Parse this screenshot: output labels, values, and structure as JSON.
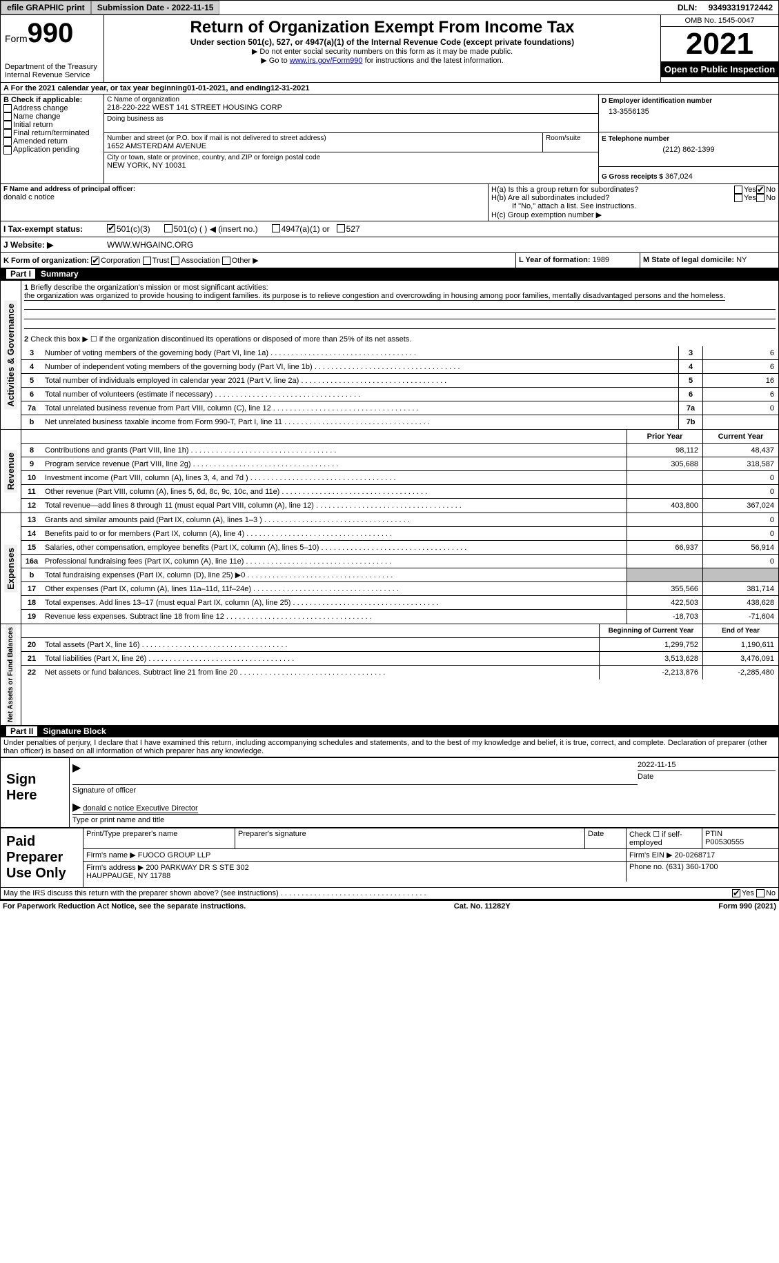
{
  "topbar": {
    "efile": "efile GRAPHIC print",
    "submission": "Submission Date - 2022-11-15",
    "dln_label": "DLN:",
    "dln": "93493319172442"
  },
  "header": {
    "form_word": "Form",
    "form_num": "990",
    "dept": "Department of the Treasury\nInternal Revenue Service",
    "title": "Return of Organization Exempt From Income Tax",
    "subtitle": "Under section 501(c), 527, or 4947(a)(1) of the Internal Revenue Code (except private foundations)",
    "note1": "▶ Do not enter social security numbers on this form as it may be made public.",
    "note2_pre": "▶ Go to ",
    "note2_link": "www.irs.gov/Form990",
    "note2_post": " for instructions and the latest information.",
    "omb": "OMB No. 1545-0047",
    "year": "2021",
    "open": "Open to Public Inspection"
  },
  "A": {
    "text": "A For the 2021 calendar year, or tax year beginning ",
    "begin": "01-01-2021",
    "mid": " , and ending ",
    "end": "12-31-2021"
  },
  "B": {
    "label": "B Check if applicable:",
    "items": [
      "Address change",
      "Name change",
      "Initial return",
      "Final return/terminated",
      "Amended return",
      "Application pending"
    ]
  },
  "C": {
    "name_label": "C Name of organization",
    "name": "218-220-222 WEST 141 STREET HOUSING CORP",
    "dba_label": "Doing business as",
    "addr_label": "Number and street (or P.O. box if mail is not delivered to street address)",
    "room_label": "Room/suite",
    "addr": "1652 AMSTERDAM AVENUE",
    "city_label": "City or town, state or province, country, and ZIP or foreign postal code",
    "city": "NEW YORK, NY  10031"
  },
  "D": {
    "label": "D Employer identification number",
    "val": "13-3556135"
  },
  "E": {
    "label": "E Telephone number",
    "val": "(212) 862-1399"
  },
  "G": {
    "label": "G Gross receipts $",
    "val": "367,024"
  },
  "F": {
    "label": "F Name and address of principal officer:",
    "val": "donald c notice"
  },
  "H": {
    "a": "H(a)  Is this a group return for subordinates?",
    "b": "H(b)  Are all subordinates included?",
    "b_note": "If \"No,\" attach a list. See instructions.",
    "c": "H(c)  Group exemption number ▶",
    "yes": "Yes",
    "no": "No"
  },
  "I": {
    "label": "I    Tax-exempt status:",
    "opts": [
      "501(c)(3)",
      "501(c) (  ) ◀ (insert no.)",
      "4947(a)(1) or",
      "527"
    ]
  },
  "J": {
    "label": "J   Website: ▶",
    "val": "WWW.WHGAINC.ORG"
  },
  "K": {
    "label": "K Form of organization:",
    "opts": [
      "Corporation",
      "Trust",
      "Association",
      "Other ▶"
    ]
  },
  "L": {
    "label": "L Year of formation:",
    "val": "1989"
  },
  "M": {
    "label": "M State of legal domicile:",
    "val": "NY"
  },
  "part1": {
    "num": "Part I",
    "title": "Summary"
  },
  "summary": {
    "l1": "Briefly describe the organization's mission or most significant activities:",
    "l1_text": "the organization was organized to provide housing to indigent families. its purpose is to relieve congestion and overcrowding in housing among poor families, mentally disadvantaged persons and the homeless.",
    "l2": "Check this box ▶ ☐  if the organization discontinued its operations or disposed of more than 25% of its net assets.",
    "lines": [
      {
        "n": "3",
        "t": "Number of voting members of the governing body (Part VI, line 1a)",
        "b": "3",
        "v": "6"
      },
      {
        "n": "4",
        "t": "Number of independent voting members of the governing body (Part VI, line 1b)",
        "b": "4",
        "v": "6"
      },
      {
        "n": "5",
        "t": "Total number of individuals employed in calendar year 2021 (Part V, line 2a)",
        "b": "5",
        "v": "16"
      },
      {
        "n": "6",
        "t": "Total number of volunteers (estimate if necessary)",
        "b": "6",
        "v": "6"
      },
      {
        "n": "7a",
        "t": "Total unrelated business revenue from Part VIII, column (C), line 12",
        "b": "7a",
        "v": "0"
      },
      {
        "n": "b",
        "t": "Net unrelated business taxable income from Form 990-T, Part I, line 11",
        "b": "7b",
        "v": ""
      }
    ],
    "col_prior": "Prior Year",
    "col_curr": "Current Year"
  },
  "revenue": {
    "label": "Revenue",
    "lines": [
      {
        "n": "8",
        "t": "Contributions and grants (Part VIII, line 1h)",
        "p": "98,112",
        "c": "48,437"
      },
      {
        "n": "9",
        "t": "Program service revenue (Part VIII, line 2g)",
        "p": "305,688",
        "c": "318,587"
      },
      {
        "n": "10",
        "t": "Investment income (Part VIII, column (A), lines 3, 4, and 7d )",
        "p": "",
        "c": "0"
      },
      {
        "n": "11",
        "t": "Other revenue (Part VIII, column (A), lines 5, 6d, 8c, 9c, 10c, and 11e)",
        "p": "",
        "c": "0"
      },
      {
        "n": "12",
        "t": "Total revenue—add lines 8 through 11 (must equal Part VIII, column (A), line 12)",
        "p": "403,800",
        "c": "367,024"
      }
    ]
  },
  "expenses": {
    "label": "Expenses",
    "lines": [
      {
        "n": "13",
        "t": "Grants and similar amounts paid (Part IX, column (A), lines 1–3 )",
        "p": "",
        "c": "0"
      },
      {
        "n": "14",
        "t": "Benefits paid to or for members (Part IX, column (A), line 4)",
        "p": "",
        "c": "0"
      },
      {
        "n": "15",
        "t": "Salaries, other compensation, employee benefits (Part IX, column (A), lines 5–10)",
        "p": "66,937",
        "c": "56,914"
      },
      {
        "n": "16a",
        "t": "Professional fundraising fees (Part IX, column (A), line 11e)",
        "p": "",
        "c": "0"
      },
      {
        "n": "b",
        "t": "Total fundraising expenses (Part IX, column (D), line 25) ▶0",
        "p": "shade",
        "c": "shade"
      },
      {
        "n": "17",
        "t": "Other expenses (Part IX, column (A), lines 11a–11d, 11f–24e)",
        "p": "355,566",
        "c": "381,714"
      },
      {
        "n": "18",
        "t": "Total expenses. Add lines 13–17 (must equal Part IX, column (A), line 25)",
        "p": "422,503",
        "c": "438,628"
      },
      {
        "n": "19",
        "t": "Revenue less expenses. Subtract line 18 from line 12",
        "p": "-18,703",
        "c": "-71,604"
      }
    ]
  },
  "netassets": {
    "label": "Net Assets or Fund Balances",
    "col_begin": "Beginning of Current Year",
    "col_end": "End of Year",
    "lines": [
      {
        "n": "20",
        "t": "Total assets (Part X, line 16)",
        "p": "1,299,752",
        "c": "1,190,611"
      },
      {
        "n": "21",
        "t": "Total liabilities (Part X, line 26)",
        "p": "3,513,628",
        "c": "3,476,091"
      },
      {
        "n": "22",
        "t": "Net assets or fund balances. Subtract line 21 from line 20",
        "p": "-2,213,876",
        "c": "-2,285,480"
      }
    ]
  },
  "part2": {
    "num": "Part II",
    "title": "Signature Block"
  },
  "penalties": "Under penalties of perjury, I declare that I have examined this return, including accompanying schedules and statements, and to the best of my knowledge and belief, it is true, correct, and complete. Declaration of preparer (other than officer) is based on all information of which preparer has any knowledge.",
  "sign": {
    "here": "Sign Here",
    "sig_label": "Signature of officer",
    "date_label": "Date",
    "date": "2022-11-15",
    "name": "donald c notice  Executive Director",
    "name_label": "Type or print name and title"
  },
  "prep": {
    "title": "Paid Preparer Use Only",
    "h1": "Print/Type preparer's name",
    "h2": "Preparer's signature",
    "h3": "Date",
    "h4_pre": "Check ☐ if self-employed",
    "h5": "PTIN",
    "ptin": "P00530555",
    "firm_label": "Firm's name    ▶",
    "firm": "FUOCO GROUP LLP",
    "ein_label": "Firm's EIN ▶",
    "ein": "20-0268717",
    "addr_label": "Firm's address ▶",
    "addr": "200 PARKWAY DR S STE 302\nHAUPPAUGE, NY  11788",
    "phone_label": "Phone no.",
    "phone": "(631) 360-1700"
  },
  "discuss": {
    "text": "May the IRS discuss this return with the preparer shown above? (see instructions)",
    "yes": "Yes",
    "no": "No"
  },
  "footer": {
    "left": "For Paperwork Reduction Act Notice, see the separate instructions.",
    "mid": "Cat. No. 11282Y",
    "right": "Form 990 (2021)"
  },
  "side_labels": {
    "activities": "Activities & Governance"
  }
}
